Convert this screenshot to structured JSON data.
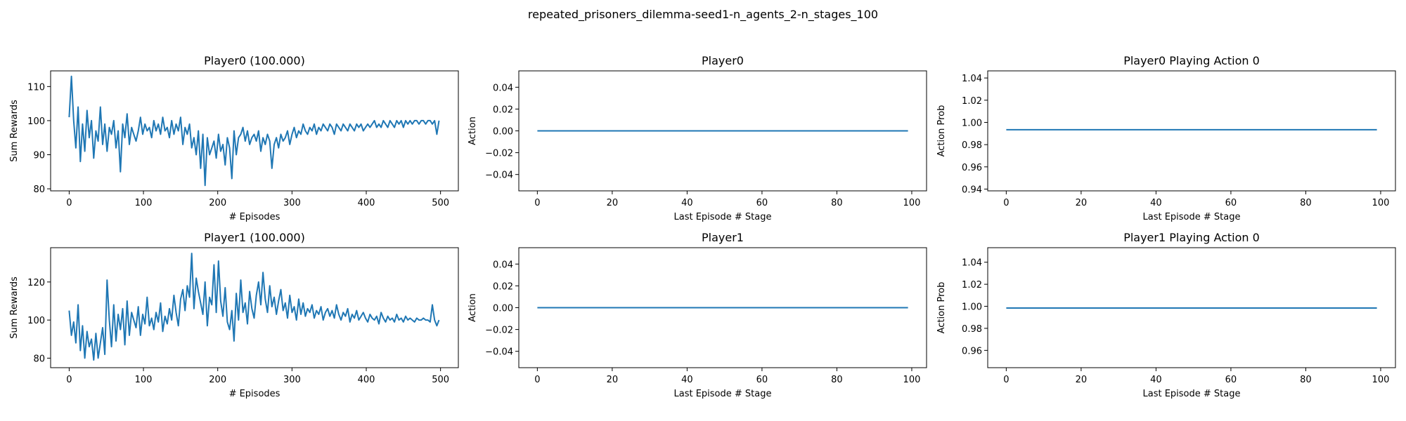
{
  "suptitle": "repeated_prisoners_dilemma-seed1-n_agents_2-n_stages_100",
  "colors": {
    "line": "#1f77b4",
    "frame": "#000000",
    "background": "#ffffff"
  },
  "chart_data": [
    {
      "type": "line",
      "title": "Player0 (100.000)",
      "xlabel": "# Episodes",
      "ylabel": "Sum Rewards",
      "xlim": [
        -25,
        524
      ],
      "ylim": [
        79.4,
        114.6
      ],
      "xticks": [
        0,
        100,
        200,
        300,
        400,
        500
      ],
      "xtick_labels": [
        "0",
        "100",
        "200",
        "300",
        "400",
        "500"
      ],
      "yticks": [
        80,
        90,
        100,
        110
      ],
      "ytick_labels": [
        "80",
        "90",
        "100",
        "110"
      ],
      "grid": false,
      "series": [
        {
          "x": [
            0,
            3,
            6,
            9,
            12,
            15,
            18,
            21,
            24,
            27,
            30,
            33,
            36,
            39,
            42,
            45,
            48,
            51,
            54,
            57,
            60,
            63,
            66,
            69,
            72,
            75,
            78,
            81,
            84,
            87,
            90,
            93,
            96,
            99,
            102,
            105,
            108,
            111,
            114,
            117,
            120,
            123,
            126,
            129,
            132,
            135,
            138,
            141,
            144,
            147,
            150,
            153,
            156,
            159,
            162,
            165,
            168,
            171,
            174,
            177,
            180,
            183,
            186,
            189,
            192,
            195,
            198,
            201,
            204,
            207,
            210,
            213,
            216,
            219,
            222,
            225,
            228,
            231,
            234,
            237,
            240,
            243,
            246,
            249,
            252,
            255,
            258,
            261,
            264,
            267,
            270,
            273,
            276,
            279,
            282,
            285,
            288,
            291,
            294,
            297,
            300,
            303,
            306,
            309,
            312,
            315,
            318,
            321,
            324,
            327,
            330,
            333,
            336,
            339,
            342,
            345,
            348,
            351,
            354,
            357,
            360,
            363,
            366,
            369,
            372,
            375,
            378,
            381,
            384,
            387,
            390,
            393,
            396,
            399,
            402,
            405,
            408,
            411,
            414,
            417,
            420,
            423,
            426,
            429,
            432,
            435,
            438,
            441,
            444,
            447,
            450,
            453,
            456,
            459,
            462,
            465,
            468,
            471,
            474,
            477,
            480,
            483,
            486,
            489,
            492,
            495,
            498
          ],
          "values": [
            101,
            113,
            100,
            92,
            104,
            88,
            99,
            91,
            103,
            95,
            100,
            89,
            97,
            94,
            104,
            93,
            99,
            91,
            98,
            96,
            100,
            92,
            97,
            85,
            99,
            95,
            102,
            93,
            98,
            96,
            94,
            97,
            101,
            96,
            99,
            97,
            98,
            95,
            100,
            97,
            99,
            96,
            101,
            97,
            98,
            95,
            100,
            96,
            99,
            97,
            101,
            93,
            98,
            96,
            99,
            92,
            95,
            90,
            97,
            86,
            96,
            81,
            95,
            90,
            92,
            94,
            89,
            96,
            91,
            93,
            87,
            95,
            92,
            83,
            97,
            90,
            95,
            96,
            98,
            94,
            97,
            93,
            95,
            96,
            94,
            97,
            91,
            95,
            93,
            96,
            94,
            86,
            93,
            95,
            92,
            96,
            94,
            95,
            97,
            93,
            96,
            98,
            95,
            97,
            96,
            99,
            97,
            96,
            98,
            97,
            99,
            96,
            98,
            97,
            99,
            98,
            97,
            99,
            98,
            96,
            99,
            98,
            97,
            99,
            98,
            97,
            99,
            98,
            97,
            99,
            98,
            99,
            97,
            98,
            99,
            98,
            99,
            100,
            98,
            99,
            98,
            100,
            99,
            98,
            100,
            99,
            98,
            100,
            99,
            100,
            98,
            100,
            99,
            100,
            99,
            100,
            100,
            99,
            100,
            100,
            99,
            100,
            100,
            99,
            100,
            96,
            100
          ]
        }
      ]
    },
    {
      "type": "line",
      "title": "Player0",
      "xlabel": "Last Episode # Stage",
      "ylabel": "Action",
      "xlim": [
        -4.95,
        103.95
      ],
      "ylim": [
        -0.055,
        0.055
      ],
      "xticks": [
        0,
        20,
        40,
        60,
        80,
        100
      ],
      "xtick_labels": [
        "0",
        "20",
        "40",
        "60",
        "80",
        "100"
      ],
      "yticks": [
        -0.04,
        -0.02,
        0.0,
        0.02,
        0.04
      ],
      "ytick_labels": [
        "−0.04",
        "−0.02",
        "0.00",
        "0.02",
        "0.04"
      ],
      "grid": false,
      "series": [
        {
          "x": [
            0,
            99
          ],
          "values": [
            0.0,
            0.0
          ]
        }
      ]
    },
    {
      "type": "line",
      "title": "Player0 Playing Action 0",
      "xlabel": "Last Episode # Stage",
      "ylabel": "Action Prob",
      "xlim": [
        -4.95,
        103.95
      ],
      "ylim": [
        0.9384,
        1.0464
      ],
      "xticks": [
        0,
        20,
        40,
        60,
        80,
        100
      ],
      "xtick_labels": [
        "0",
        "20",
        "40",
        "60",
        "80",
        "100"
      ],
      "yticks": [
        0.94,
        0.96,
        0.98,
        1.0,
        1.02,
        1.04
      ],
      "ytick_labels": [
        "0.94",
        "0.96",
        "0.98",
        "1.00",
        "1.02",
        "1.04"
      ],
      "grid": false,
      "series": [
        {
          "x": [
            0,
            99
          ],
          "values": [
            0.9934,
            0.9934
          ]
        }
      ]
    },
    {
      "type": "line",
      "title": "Player1 (100.000)",
      "xlabel": "# Episodes",
      "ylabel": "Sum Rewards",
      "xlim": [
        -25,
        524
      ],
      "ylim": [
        75.0,
        138.0
      ],
      "xticks": [
        0,
        100,
        200,
        300,
        400,
        500
      ],
      "xtick_labels": [
        "0",
        "100",
        "200",
        "300",
        "400",
        "500"
      ],
      "yticks": [
        80,
        100,
        120
      ],
      "ytick_labels": [
        "80",
        "100",
        "120"
      ],
      "grid": false,
      "series": [
        {
          "x": [
            0,
            3,
            6,
            9,
            12,
            15,
            18,
            21,
            24,
            27,
            30,
            33,
            36,
            39,
            42,
            45,
            48,
            51,
            54,
            57,
            60,
            63,
            66,
            69,
            72,
            75,
            78,
            81,
            84,
            87,
            90,
            93,
            96,
            99,
            102,
            105,
            108,
            111,
            114,
            117,
            120,
            123,
            126,
            129,
            132,
            135,
            138,
            141,
            144,
            147,
            150,
            153,
            156,
            159,
            162,
            165,
            168,
            171,
            174,
            177,
            180,
            183,
            186,
            189,
            192,
            195,
            198,
            201,
            204,
            207,
            210,
            213,
            216,
            219,
            222,
            225,
            228,
            231,
            234,
            237,
            240,
            243,
            246,
            249,
            252,
            255,
            258,
            261,
            264,
            267,
            270,
            273,
            276,
            279,
            282,
            285,
            288,
            291,
            294,
            297,
            300,
            303,
            306,
            309,
            312,
            315,
            318,
            321,
            324,
            327,
            330,
            333,
            336,
            339,
            342,
            345,
            348,
            351,
            354,
            357,
            360,
            363,
            366,
            369,
            372,
            375,
            378,
            381,
            384,
            387,
            390,
            393,
            396,
            399,
            402,
            405,
            408,
            411,
            414,
            417,
            420,
            423,
            426,
            429,
            432,
            435,
            438,
            441,
            444,
            447,
            450,
            453,
            456,
            459,
            462,
            465,
            468,
            471,
            474,
            477,
            480,
            483,
            486,
            489,
            492,
            495,
            498
          ],
          "values": [
            105,
            92,
            99,
            88,
            108,
            84,
            97,
            80,
            94,
            86,
            90,
            79,
            93,
            80,
            88,
            96,
            82,
            121,
            100,
            86,
            108,
            89,
            103,
            95,
            106,
            87,
            110,
            92,
            104,
            100,
            96,
            107,
            92,
            103,
            98,
            112,
            97,
            101,
            95,
            104,
            99,
            109,
            94,
            102,
            98,
            106,
            100,
            113,
            104,
            97,
            111,
            116,
            105,
            118,
            112,
            135,
            106,
            122,
            115,
            109,
            103,
            120,
            97,
            112,
            108,
            129,
            104,
            131,
            110,
            102,
            117,
            99,
            95,
            105,
            89,
            114,
            100,
            121,
            104,
            109,
            98,
            115,
            106,
            101,
            113,
            120,
            108,
            125,
            111,
            104,
            118,
            107,
            112,
            103,
            110,
            116,
            105,
            109,
            101,
            113,
            104,
            107,
            100,
            111,
            103,
            109,
            102,
            106,
            104,
            108,
            101,
            105,
            103,
            107,
            100,
            104,
            106,
            102,
            105,
            101,
            108,
            103,
            100,
            104,
            102,
            106,
            99,
            103,
            101,
            105,
            100,
            102,
            104,
            101,
            99,
            103,
            101,
            100,
            102,
            98,
            104,
            101,
            99,
            102,
            100,
            101,
            99,
            103,
            100,
            101,
            99,
            102,
            100,
            101,
            100,
            99,
            101,
            100,
            100,
            101,
            100,
            100,
            99,
            108,
            100,
            97,
            100
          ]
        }
      ]
    },
    {
      "type": "line",
      "title": "Player1",
      "xlabel": "Last Episode # Stage",
      "ylabel": "Action",
      "xlim": [
        -4.95,
        103.95
      ],
      "ylim": [
        -0.055,
        0.055
      ],
      "xticks": [
        0,
        20,
        40,
        60,
        80,
        100
      ],
      "xtick_labels": [
        "0",
        "20",
        "40",
        "60",
        "80",
        "100"
      ],
      "yticks": [
        -0.04,
        -0.02,
        0.0,
        0.02,
        0.04
      ],
      "ytick_labels": [
        "−0.04",
        "−0.02",
        "0.00",
        "0.02",
        "0.04"
      ],
      "grid": false,
      "series": [
        {
          "x": [
            0,
            99
          ],
          "values": [
            0.0,
            0.0
          ]
        }
      ]
    },
    {
      "type": "line",
      "title": "Player1 Playing Action 0",
      "xlabel": "Last Episode # Stage",
      "ylabel": "Action Prob",
      "xlim": [
        -4.95,
        103.95
      ],
      "ylim": [
        0.9443,
        1.0532
      ],
      "xticks": [
        0,
        20,
        40,
        60,
        80,
        100
      ],
      "xtick_labels": [
        "0",
        "20",
        "40",
        "60",
        "80",
        "100"
      ],
      "yticks": [
        0.96,
        0.98,
        1.0,
        1.02,
        1.04
      ],
      "ytick_labels": [
        "0.96",
        "0.98",
        "1.00",
        "1.02",
        "1.04"
      ],
      "grid": false,
      "series": [
        {
          "x": [
            0,
            99
          ],
          "values": [
            0.9984,
            0.9984
          ]
        }
      ]
    }
  ]
}
